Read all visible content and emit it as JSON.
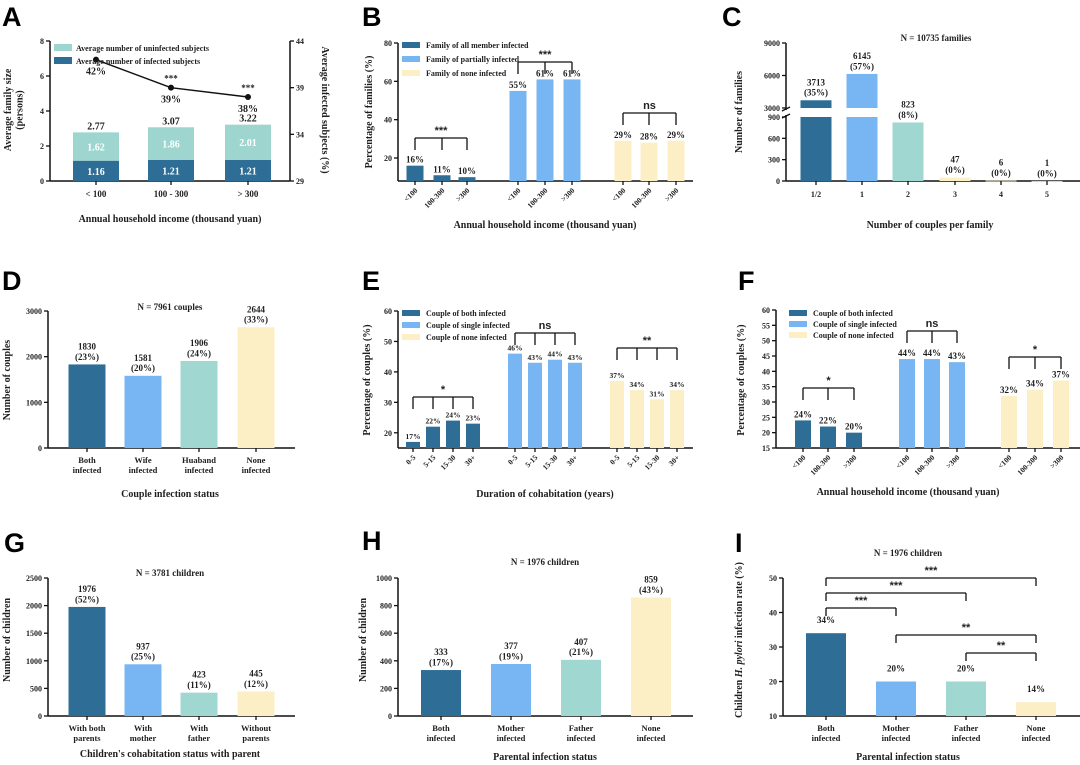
{
  "chart_data": [
    {
      "panel": "A",
      "type": "bar",
      "stacked": true,
      "categories": [
        "< 100",
        "100 - 300",
        "> 300"
      ],
      "series": [
        {
          "name": "Average number of uninfected subjects",
          "color": "#9ed6cf",
          "values": [
            1.62,
            1.86,
            2.01
          ]
        },
        {
          "name": "Average number of infected subjects",
          "color": "#2e6e96",
          "values": [
            1.16,
            1.21,
            1.21
          ]
        }
      ],
      "totals": [
        2.77,
        3.07,
        3.22
      ],
      "line": {
        "axis": "right",
        "values": [
          42,
          39,
          38
        ],
        "labels": [
          "42%",
          "39%",
          "38%"
        ],
        "significance": [
          "",
          "***",
          "***"
        ]
      },
      "xlabel": "Annual household income (thousand yuan)",
      "ylabel": [
        "Average family size",
        "(persons)"
      ],
      "y2label": "Average infected subjects (%)",
      "ylim": [
        0,
        8
      ],
      "yticks": [
        0,
        2,
        4,
        6,
        8
      ],
      "y2lim": [
        29,
        44
      ],
      "y2ticks": [
        29,
        34,
        39,
        44
      ]
    },
    {
      "panel": "B",
      "type": "bar",
      "grouped": true,
      "categories": [
        "<100",
        "100-300",
        ">300"
      ],
      "series": [
        {
          "name": "Family of all member infected",
          "color": "#2e6e96",
          "values": [
            16,
            11,
            10
          ],
          "labels": [
            "16%",
            "11%",
            "10%"
          ],
          "significance": "***"
        },
        {
          "name": "Family of partially infected",
          "color": "#78b6f3",
          "values": [
            55,
            61,
            61
          ],
          "labels": [
            "55%",
            "61%",
            "61%"
          ],
          "significance": "***"
        },
        {
          "name": "Family of none infected",
          "color": "#fcefc5",
          "values": [
            29,
            28,
            29
          ],
          "labels": [
            "29%",
            "28%",
            "29%"
          ],
          "significance": "ns"
        }
      ],
      "xlabel": "Annual household income (thousand yuan)",
      "ylabel": "Percentage of families (%)",
      "ylim": [
        8,
        80
      ],
      "yticks": [
        20,
        40,
        60,
        80
      ]
    },
    {
      "panel": "C",
      "type": "bar",
      "axis_break": [
        900,
        3000
      ],
      "annotation": "N = 10735 families",
      "categories": [
        "1/2",
        "1",
        "2",
        "3",
        "4",
        "5"
      ],
      "values": [
        3713,
        6145,
        823,
        47,
        6,
        1
      ],
      "labels": [
        [
          "3713",
          "(35%)"
        ],
        [
          "6145",
          "(57%)"
        ],
        [
          "823",
          "(8%)"
        ],
        [
          "47",
          "(0%)"
        ],
        [
          "6",
          "(0%)"
        ],
        [
          "1",
          "(0%)"
        ]
      ],
      "colors": [
        "#2e6e96",
        "#78b6f3",
        "#a0d7d0",
        "#fcefc5",
        "#fcefc5",
        "#fcefc5"
      ],
      "xlabel": "Number of couples per family",
      "ylabel": "Number of families",
      "yticks": [
        0,
        300,
        600,
        900,
        3000,
        6000,
        9000
      ]
    },
    {
      "panel": "D",
      "type": "bar",
      "annotation": "N = 7961 couples",
      "categories": [
        [
          "Both",
          "infected"
        ],
        [
          "Wife",
          "infected"
        ],
        [
          "Huaband",
          "infected"
        ],
        [
          "None",
          "infected"
        ]
      ],
      "values": [
        1830,
        1581,
        1906,
        2644
      ],
      "labels": [
        [
          "1830",
          "(23%)"
        ],
        [
          "1581",
          "(20%)"
        ],
        [
          "1906",
          "(24%)"
        ],
        [
          "2644",
          "(33%)"
        ]
      ],
      "colors": [
        "#2e6e96",
        "#78b6f3",
        "#a0d7d0",
        "#fcefc5"
      ],
      "xlabel": "Couple infection status",
      "ylabel": "Number of couples",
      "ylim": [
        0,
        3000
      ],
      "yticks": [
        0,
        1000,
        2000,
        3000
      ]
    },
    {
      "panel": "E",
      "type": "bar",
      "grouped": true,
      "categories": [
        "0-5",
        "5-15",
        "15-30",
        "30+"
      ],
      "series": [
        {
          "name": "Couple of both infected",
          "color": "#2e6e96",
          "values": [
            17,
            22,
            24,
            23
          ],
          "labels": [
            "17%",
            "22%",
            "24%",
            "23%"
          ],
          "significance": "*"
        },
        {
          "name": "Couple of single infected",
          "color": "#78b6f3",
          "values": [
            46,
            43,
            44,
            43
          ],
          "labels": [
            "46%",
            "43%",
            "44%",
            "43%"
          ],
          "significance": "ns"
        },
        {
          "name": "Couple of none infected",
          "color": "#fcefc5",
          "values": [
            37,
            34,
            31,
            34
          ],
          "labels": [
            "37%",
            "34%",
            "31%",
            "34%"
          ],
          "significance": "**"
        }
      ],
      "xlabel": "Duration of cohabitation (years)",
      "ylabel": "Percentage of couples (%)",
      "ylim": [
        15,
        60
      ],
      "yticks": [
        20,
        30,
        40,
        50,
        60
      ]
    },
    {
      "panel": "F",
      "type": "bar",
      "grouped": true,
      "categories": [
        "<100",
        "100-300",
        ">300"
      ],
      "series": [
        {
          "name": "Couple of both infected",
          "color": "#2e6e96",
          "values": [
            24,
            22,
            20
          ],
          "labels": [
            "24%",
            "22%",
            "20%"
          ],
          "significance": "*"
        },
        {
          "name": "Couple of single infected",
          "color": "#78b6f3",
          "values": [
            44,
            44,
            43
          ],
          "labels": [
            "44%",
            "44%",
            "43%"
          ],
          "significance": "ns"
        },
        {
          "name": "Couple of none infected",
          "color": "#fcefc5",
          "values": [
            32,
            34,
            37
          ],
          "labels": [
            "32%",
            "34%",
            "37%"
          ],
          "significance": "*"
        }
      ],
      "xlabel": "Annual household income (thousand yuan)",
      "ylabel": "Percentage of couples (%)",
      "ylim": [
        15,
        60
      ],
      "yticks": [
        15,
        20,
        25,
        30,
        35,
        40,
        45,
        50,
        55,
        60
      ]
    },
    {
      "panel": "G",
      "type": "bar",
      "annotation": "N = 3781 children",
      "categories": [
        [
          "With both",
          "parents"
        ],
        [
          "With",
          "mother"
        ],
        [
          "With",
          "father"
        ],
        [
          "Without",
          "parents"
        ]
      ],
      "values": [
        1976,
        937,
        423,
        445
      ],
      "labels": [
        [
          "1976",
          "(52%)"
        ],
        [
          "937",
          "(25%)"
        ],
        [
          "423",
          "(11%)"
        ],
        [
          "445",
          "(12%)"
        ]
      ],
      "colors": [
        "#2e6e96",
        "#78b6f3",
        "#a0d7d0",
        "#fcefc5"
      ],
      "xlabel": "Children's cohabitation status with parent",
      "ylabel": "Number of children",
      "ylim": [
        0,
        2500
      ],
      "yticks": [
        0,
        500,
        1000,
        1500,
        2000,
        2500
      ]
    },
    {
      "panel": "H",
      "type": "bar",
      "annotation": "N = 1976 children",
      "categories": [
        [
          "Both",
          "infected"
        ],
        [
          "Mother",
          "infected"
        ],
        [
          "Father",
          "infected"
        ],
        [
          "None",
          "infected"
        ]
      ],
      "values": [
        333,
        377,
        407,
        859
      ],
      "labels": [
        [
          "333",
          "(17%)"
        ],
        [
          "377",
          "(19%)"
        ],
        [
          "407",
          "(21%)"
        ],
        [
          "859",
          "(43%)"
        ]
      ],
      "colors": [
        "#2e6e96",
        "#78b6f3",
        "#a0d7d0",
        "#fcefc5"
      ],
      "xlabel": "Parental infection status",
      "ylabel": "Number of children",
      "ylim": [
        0,
        1000
      ],
      "yticks": [
        0,
        200,
        400,
        600,
        800,
        1000
      ]
    },
    {
      "panel": "I",
      "type": "bar",
      "annotation": "N = 1976 children",
      "categories": [
        [
          "Both",
          "infected"
        ],
        [
          "Mother",
          "infected"
        ],
        [
          "Father",
          "infected"
        ],
        [
          "None",
          "infected"
        ]
      ],
      "values": [
        34,
        20,
        20,
        14
      ],
      "labels": [
        "34%",
        "20%",
        "20%",
        "14%"
      ],
      "colors": [
        "#2e6e96",
        "#78b6f3",
        "#a0d7d0",
        "#fcefc5"
      ],
      "comparisons": [
        {
          "from": 0,
          "to": 3,
          "label": "***"
        },
        {
          "from": 0,
          "to": 2,
          "label": "***"
        },
        {
          "from": 0,
          "to": 1,
          "label": "***"
        },
        {
          "from": 1,
          "to": 3,
          "label": "**"
        },
        {
          "from": 2,
          "to": 3,
          "label": "**"
        }
      ],
      "xlabel": "Parental infection status",
      "ylabel": [
        "Children ",
        "H. pylori",
        " infection rate (%)"
      ],
      "ylim": [
        10,
        50
      ],
      "yticks": [
        10,
        20,
        30,
        40,
        50
      ]
    }
  ]
}
